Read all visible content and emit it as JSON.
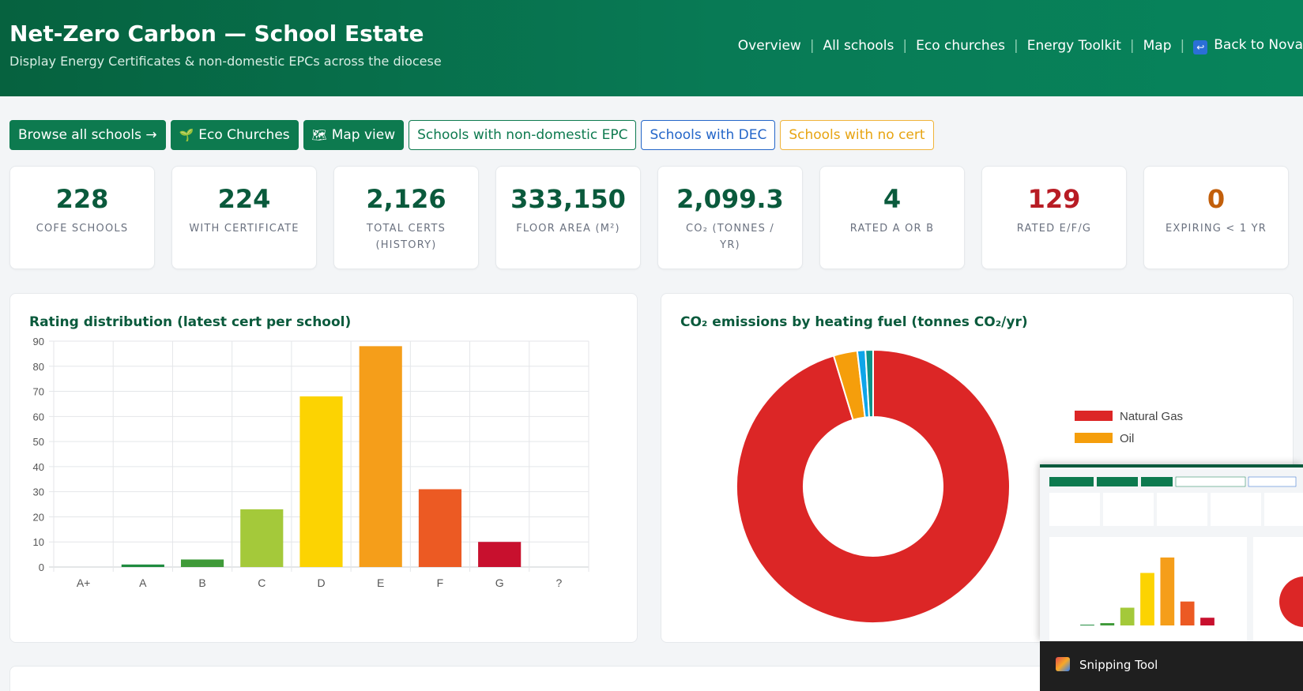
{
  "header": {
    "title": "Net-Zero Carbon — School Estate",
    "subtitle": "Display Energy Certificates & non-domestic EPCs across the diocese",
    "nav": [
      "Overview",
      "All schools",
      "Eco churches",
      "Energy Toolkit",
      "Map",
      "Back to Nova"
    ]
  },
  "actions": {
    "browse": "Browse all schools →",
    "eco": "Eco Churches",
    "map": "Map view",
    "epc": "Schools with non-domestic EPC",
    "dec": "Schools with DEC",
    "nocert": "Schools with no cert"
  },
  "stats": [
    {
      "value": "228",
      "label": "CofE Schools"
    },
    {
      "value": "224",
      "label": "With certificate"
    },
    {
      "value": "2,126",
      "label": "Total certs (history)"
    },
    {
      "value": "333,150",
      "label": "Floor area (m²)"
    },
    {
      "value": "2,099.3",
      "label": "CO₂ (tonnes / yr)"
    },
    {
      "value": "4",
      "label": "Rated A or B"
    },
    {
      "value": "129",
      "label": "Rated E/F/G"
    },
    {
      "value": "0",
      "label": "Expiring < 1 yr"
    }
  ],
  "colors": {
    "accent": "#0a5a3c",
    "red": "#b81c24",
    "brown": "#c25f0b"
  },
  "chart_data": [
    {
      "type": "bar",
      "title": "Rating distribution (latest cert per school)",
      "categories": [
        "A+",
        "A",
        "B",
        "C",
        "D",
        "E",
        "F",
        "G",
        "?"
      ],
      "values": [
        0,
        1,
        3,
        23,
        68,
        88,
        31,
        10,
        0
      ],
      "colors": [
        "#1b7a3d",
        "#1f8b3f",
        "#3f9a39",
        "#a4c93a",
        "#fcd302",
        "#f59e1a",
        "#ec5a23",
        "#c8102e",
        "#999999"
      ],
      "ylim": [
        0,
        90
      ],
      "yticks": [
        0,
        10,
        20,
        30,
        40,
        50,
        60,
        70,
        80,
        90
      ],
      "grid": true
    },
    {
      "type": "pie",
      "title": "CO₂ emissions by heating fuel (tonnes CO₂/yr)",
      "labels": [
        "Natural Gas",
        "Oil",
        "",
        ""
      ],
      "values": [
        2001.3,
        59.0,
        20.0,
        19.0
      ],
      "colors": [
        "#dc2626",
        "#f59e0b",
        "#0ea5e9",
        "#0d9488"
      ],
      "legend_position": "right"
    }
  ],
  "snip": {
    "label": "Snipping Tool"
  }
}
